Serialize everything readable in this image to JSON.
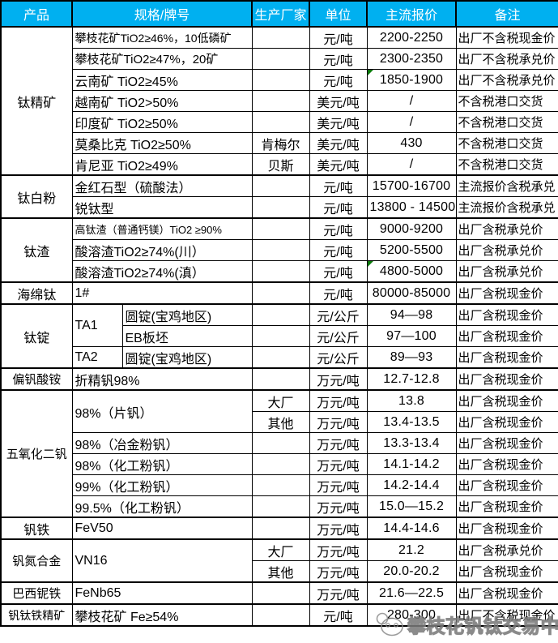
{
  "colors": {
    "header_bg": "#00B0F0",
    "header_text": "#FFFFFF",
    "border": "#000000",
    "flag_green": "#0B7A0B",
    "watermark_gray": "#8C8C8C"
  },
  "header": {
    "columns": [
      "产品",
      "规格/牌号",
      "生产厂家",
      "单位",
      "主流报价",
      "备注"
    ]
  },
  "table": {
    "rows": [
      {
        "group_start": true,
        "cells": [
          {
            "col": "product",
            "text": "钛精矿",
            "rowspan": 7
          },
          {
            "col": "spec",
            "text": "攀枝花矿TiO2≥46%，10低磷矿",
            "colspan": 2,
            "size": 14
          },
          {
            "col": "maker",
            "text": ""
          },
          {
            "col": "unit",
            "text": "元/吨"
          },
          {
            "col": "price",
            "text": "2200-2250"
          },
          {
            "col": "remark",
            "text": "出厂不含税现金价"
          }
        ]
      },
      {
        "cells": [
          {
            "col": "spec",
            "text": "攀枝花矿TiO2≥47%，20矿",
            "colspan": 2,
            "size": 15
          },
          {
            "col": "maker",
            "text": ""
          },
          {
            "col": "unit",
            "text": "元/吨"
          },
          {
            "col": "price",
            "text": "2300-2350"
          },
          {
            "col": "remark",
            "text": "出厂不含税承兑价"
          }
        ]
      },
      {
        "cells": [
          {
            "col": "spec",
            "text": "云南矿 TiO2≥45%",
            "colspan": 2
          },
          {
            "col": "maker",
            "text": ""
          },
          {
            "col": "unit",
            "text": "元/吨"
          },
          {
            "col": "price",
            "text": "1850-1900",
            "flag": true
          },
          {
            "col": "remark",
            "text": "出厂不含税承兑价"
          }
        ]
      },
      {
        "cells": [
          {
            "col": "spec",
            "text": "越南矿 TiO2>50%",
            "colspan": 2
          },
          {
            "col": "maker",
            "text": ""
          },
          {
            "col": "unit",
            "text": "美元/吨"
          },
          {
            "col": "price",
            "text": "/"
          },
          {
            "col": "remark",
            "text": "不含税港口交货"
          }
        ]
      },
      {
        "cells": [
          {
            "col": "spec",
            "text": "印度矿 TiO2≥50%",
            "colspan": 2
          },
          {
            "col": "maker",
            "text": ""
          },
          {
            "col": "unit",
            "text": "美元/吨"
          },
          {
            "col": "price",
            "text": "/"
          },
          {
            "col": "remark",
            "text": "不含税港口交货"
          }
        ]
      },
      {
        "cells": [
          {
            "col": "spec",
            "text": "莫桑比克 TiO2≥50%",
            "colspan": 2
          },
          {
            "col": "maker",
            "text": "肯梅尔"
          },
          {
            "col": "unit",
            "text": "美元/吨"
          },
          {
            "col": "price",
            "text": "430"
          },
          {
            "col": "remark",
            "text": "不含税港口交货"
          }
        ]
      },
      {
        "cells": [
          {
            "col": "spec",
            "text": "肯尼亚 TiO2≥49%",
            "colspan": 2
          },
          {
            "col": "maker",
            "text": "贝斯"
          },
          {
            "col": "unit",
            "text": "美元/吨"
          },
          {
            "col": "price",
            "text": "/"
          },
          {
            "col": "remark",
            "text": "不含税港口交货"
          }
        ]
      },
      {
        "group_start": true,
        "cells": [
          {
            "col": "product",
            "text": "钛白粉",
            "rowspan": 2
          },
          {
            "col": "spec",
            "text": "金红石型（硫酸法）",
            "colspan": 2
          },
          {
            "col": "maker",
            "text": ""
          },
          {
            "col": "unit",
            "text": "元/吨"
          },
          {
            "col": "price",
            "text": "15700-16700"
          },
          {
            "col": "remark",
            "text": "主流报价含税承兑"
          }
        ]
      },
      {
        "cells": [
          {
            "col": "spec",
            "text": "锐钛型",
            "colspan": 2
          },
          {
            "col": "maker",
            "text": ""
          },
          {
            "col": "unit",
            "text": "元/吨"
          },
          {
            "col": "price",
            "text": "13800 - 14500"
          },
          {
            "col": "remark",
            "text": "主流报价含税承兑"
          }
        ]
      },
      {
        "group_start": true,
        "cells": [
          {
            "col": "product",
            "text": "钛渣",
            "rowspan": 3
          },
          {
            "col": "spec",
            "text": "高钛渣（普通钙镁）TiO2 ≥90%",
            "colspan": 2,
            "size": 13
          },
          {
            "col": "maker",
            "text": ""
          },
          {
            "col": "unit",
            "text": "元/吨"
          },
          {
            "col": "price",
            "text": "9000-9200"
          },
          {
            "col": "remark",
            "text": "出厂含税承兑价"
          }
        ]
      },
      {
        "cells": [
          {
            "col": "spec",
            "text": "酸溶渣TiO2≥74%(川）",
            "colspan": 2
          },
          {
            "col": "maker",
            "text": ""
          },
          {
            "col": "unit",
            "text": "元/吨"
          },
          {
            "col": "price",
            "text": "5200-5500"
          },
          {
            "col": "remark",
            "text": "出厂含税承兑价"
          }
        ]
      },
      {
        "cells": [
          {
            "col": "spec",
            "text": "酸溶渣TiO2≥74%(滇）",
            "colspan": 2
          },
          {
            "col": "maker",
            "text": ""
          },
          {
            "col": "unit",
            "text": "元/吨"
          },
          {
            "col": "price",
            "text": "4800-5000",
            "flag": true
          },
          {
            "col": "remark",
            "text": "出厂含税承兑价"
          }
        ]
      },
      {
        "group_start": true,
        "cells": [
          {
            "col": "product",
            "text": "海绵钛"
          },
          {
            "col": "spec",
            "text": "1#",
            "colspan": 2
          },
          {
            "col": "maker",
            "text": ""
          },
          {
            "col": "unit",
            "text": "元/吨"
          },
          {
            "col": "price",
            "text": "80000-85000"
          },
          {
            "col": "remark",
            "text": "出厂含税现金价"
          }
        ]
      },
      {
        "group_start": true,
        "cells": [
          {
            "col": "product",
            "text": "钛锭",
            "rowspan": 3
          },
          {
            "col": "spec_a",
            "text": "TA1",
            "rowspan": 2
          },
          {
            "col": "spec_b",
            "text": "圆锭(宝鸡地区)"
          },
          {
            "col": "maker",
            "text": ""
          },
          {
            "col": "unit",
            "text": "元/公斤"
          },
          {
            "col": "price",
            "text": "94—98"
          },
          {
            "col": "remark",
            "text": "出厂含税现金价"
          }
        ]
      },
      {
        "cells": [
          {
            "col": "spec_b",
            "text": "EB板坯"
          },
          {
            "col": "maker",
            "text": ""
          },
          {
            "col": "unit",
            "text": "元/公斤"
          },
          {
            "col": "price",
            "text": "97—100"
          },
          {
            "col": "remark",
            "text": "出厂含税现金价"
          }
        ]
      },
      {
        "cells": [
          {
            "col": "spec_a",
            "text": "TA2"
          },
          {
            "col": "spec_b",
            "text": "圆锭(宝鸡地区)"
          },
          {
            "col": "maker",
            "text": ""
          },
          {
            "col": "unit",
            "text": "元/公斤"
          },
          {
            "col": "price",
            "text": "89—93"
          },
          {
            "col": "remark",
            "text": "出厂含税现金价"
          }
        ]
      },
      {
        "group_start": true,
        "cells": [
          {
            "col": "product",
            "text": "偏钒酸铵",
            "size": 15
          },
          {
            "col": "spec",
            "text": "折精钒98%",
            "colspan": 2
          },
          {
            "col": "maker",
            "text": ""
          },
          {
            "col": "unit",
            "text": "万元/吨"
          },
          {
            "col": "price",
            "text": "12.7-12.8"
          },
          {
            "col": "remark",
            "text": "出厂含税现金价"
          }
        ]
      },
      {
        "group_start": true,
        "cells": [
          {
            "col": "product",
            "text": "五氧化二钒",
            "rowspan": 6,
            "size": 15
          },
          {
            "col": "spec",
            "text": "98%（片钒）",
            "colspan": 2,
            "rowspan": 2
          },
          {
            "col": "maker",
            "text": "大厂"
          },
          {
            "col": "unit",
            "text": "万元/吨"
          },
          {
            "col": "price",
            "text": "13.8"
          },
          {
            "col": "remark",
            "text": "出厂含税现金价"
          }
        ]
      },
      {
        "cells": [
          {
            "col": "maker",
            "text": "其他"
          },
          {
            "col": "unit",
            "text": "万元/吨"
          },
          {
            "col": "price",
            "text": "13.4-13.5"
          },
          {
            "col": "remark",
            "text": "出厂含税现金价"
          }
        ]
      },
      {
        "cells": [
          {
            "col": "spec",
            "text": "98%（冶金粉钒）",
            "colspan": 2
          },
          {
            "col": "maker",
            "text": ""
          },
          {
            "col": "unit",
            "text": "万元/吨"
          },
          {
            "col": "price",
            "text": "13.3-13.4"
          },
          {
            "col": "remark",
            "text": "出厂含税现金价"
          }
        ]
      },
      {
        "cells": [
          {
            "col": "spec",
            "text": "98%（化工粉钒）",
            "colspan": 2
          },
          {
            "col": "maker",
            "text": ""
          },
          {
            "col": "unit",
            "text": "万元/吨"
          },
          {
            "col": "price",
            "text": "14.1-14.2"
          },
          {
            "col": "remark",
            "text": "出厂含税现金价"
          }
        ]
      },
      {
        "cells": [
          {
            "col": "spec",
            "text": "99%（化工粉钒）",
            "colspan": 2
          },
          {
            "col": "maker",
            "text": ""
          },
          {
            "col": "unit",
            "text": "万元/吨"
          },
          {
            "col": "price",
            "text": "14.2-14.4"
          },
          {
            "col": "remark",
            "text": "出厂含税现金价"
          }
        ]
      },
      {
        "cells": [
          {
            "col": "spec",
            "text": "99.5%（化工粉钒）",
            "colspan": 2
          },
          {
            "col": "maker",
            "text": ""
          },
          {
            "col": "unit",
            "text": "万元/吨"
          },
          {
            "col": "price",
            "text": "15.0—15.2"
          },
          {
            "col": "remark",
            "text": "出厂含税现金价"
          }
        ]
      },
      {
        "group_start": true,
        "cells": [
          {
            "col": "product",
            "text": "钒铁"
          },
          {
            "col": "spec",
            "text": "FeV50",
            "colspan": 2
          },
          {
            "col": "maker",
            "text": ""
          },
          {
            "col": "unit",
            "text": "万元/吨"
          },
          {
            "col": "price",
            "text": "14.4-14.6"
          },
          {
            "col": "remark",
            "text": "出厂含税现金价"
          }
        ]
      },
      {
        "group_start": true,
        "cells": [
          {
            "col": "product",
            "text": "钒氮合金",
            "rowspan": 2,
            "size": 15
          },
          {
            "col": "spec",
            "text": "VN16",
            "colspan": 2,
            "rowspan": 2
          },
          {
            "col": "maker",
            "text": "大厂"
          },
          {
            "col": "unit",
            "text": "万元/吨"
          },
          {
            "col": "price",
            "text": "21.2"
          },
          {
            "col": "remark",
            "text": "出厂含税承兑价"
          }
        ]
      },
      {
        "cells": [
          {
            "col": "maker",
            "text": "其他"
          },
          {
            "col": "unit",
            "text": "万元/吨"
          },
          {
            "col": "price",
            "text": "20.0-20.2"
          },
          {
            "col": "remark",
            "text": "出厂含税现金价"
          }
        ]
      },
      {
        "group_start": true,
        "cells": [
          {
            "col": "product",
            "text": "巴西铌铁",
            "size": 15
          },
          {
            "col": "spec",
            "text": "FeNb65",
            "colspan": 2
          },
          {
            "col": "maker",
            "text": ""
          },
          {
            "col": "unit",
            "text": "万元/吨"
          },
          {
            "col": "price",
            "text": "21.6—22.5"
          },
          {
            "col": "remark",
            "text": "出厂含税现金价"
          }
        ]
      },
      {
        "group_start": true,
        "cells": [
          {
            "col": "product",
            "text": "钒钛铁精矿",
            "size": 14
          },
          {
            "col": "spec",
            "text": "攀枝花矿 Fe≥54%",
            "colspan": 2
          },
          {
            "col": "maker",
            "text": ""
          },
          {
            "col": "unit",
            "text": "元/吨"
          },
          {
            "col": "price",
            "text": "280-300"
          },
          {
            "col": "remark",
            "text": "出厂不含税现金价"
          }
        ]
      }
    ]
  },
  "watermark": {
    "text": "攀枝花钒钛交易中心",
    "logo": "panda-logo"
  }
}
